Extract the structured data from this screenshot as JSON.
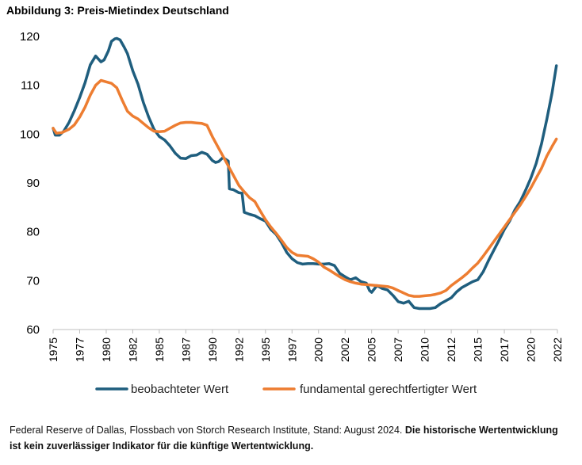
{
  "title": "Abbildung 3: Preis-Mietindex Deutschland",
  "source_text": "Federal Reserve of Dallas, Flossbach von Storch Research Institute, Stand: August 2024.",
  "disclaimer": "Die historische Wertentwicklung ist kein zuverlässiger Indikator für die künftige Wertentwicklung.",
  "chart_data": {
    "type": "line",
    "title": "Abbildung 3: Preis-Mietindex Deutschland",
    "xlabel": "",
    "ylabel": "",
    "xlim": [
      1975,
      2022.5
    ],
    "ylim": [
      60,
      120
    ],
    "yticks": [
      60,
      70,
      80,
      90,
      100,
      110,
      120
    ],
    "xticks": [
      "1975",
      "1977",
      "1980",
      "1982",
      "1985",
      "1987",
      "1990",
      "1992",
      "1995",
      "1997",
      "2000",
      "2002",
      "2005",
      "2007",
      "2010",
      "2012",
      "2015",
      "2017",
      "2020",
      "2022"
    ],
    "grid": false,
    "legend_position": "bottom",
    "series": [
      {
        "name": "beobachteter Wert",
        "color": "#1F5E7E",
        "x": [
          1975,
          1975.2,
          1975.6,
          1976,
          1976.5,
          1977,
          1977.5,
          1978,
          1978.5,
          1979,
          1979.5,
          1979.8,
          1980.2,
          1980.5,
          1980.8,
          1981,
          1981.3,
          1981.7,
          1982,
          1982.5,
          1983,
          1983.5,
          1984,
          1984.5,
          1985,
          1985.5,
          1986,
          1986.5,
          1987,
          1987.5,
          1988,
          1988.5,
          1989,
          1989.5,
          1990,
          1990.3,
          1990.6,
          1991,
          1991.5,
          1991.6,
          1992,
          1992.5,
          1992.8,
          1993,
          1993.5,
          1994,
          1994.5,
          1995,
          1995.5,
          1996,
          1996.5,
          1997,
          1997.5,
          1998,
          1998.5,
          1999,
          1999.5,
          2000,
          2000.5,
          2001,
          2001.5,
          2002,
          2002.5,
          2003,
          2003.5,
          2004,
          2004.5,
          2004.8,
          2005,
          2005.5,
          2006,
          2006.5,
          2007,
          2007.5,
          2008,
          2008.5,
          2009,
          2009.5,
          2010,
          2010.5,
          2011,
          2011.5,
          2012,
          2012.5,
          2013,
          2013.5,
          2014,
          2014.5,
          2015,
          2015.5,
          2016,
          2016.5,
          2017,
          2017.5,
          2018,
          2018.5,
          2019,
          2019.5,
          2020,
          2020.5,
          2021,
          2021.5,
          2022,
          2022.4
        ],
        "values": [
          101.2,
          99.8,
          99.8,
          100.6,
          102.4,
          104.8,
          107.5,
          110.5,
          114.2,
          116.0,
          114.8,
          115.2,
          117.0,
          119.0,
          119.5,
          119.6,
          119.3,
          117.8,
          116.5,
          113.0,
          110.2,
          106.5,
          103.5,
          101.0,
          99.5,
          98.8,
          97.6,
          96.1,
          95.1,
          95.0,
          95.6,
          95.7,
          96.3,
          95.9,
          94.6,
          94.2,
          94.4,
          95.2,
          94.5,
          88.8,
          88.6,
          88.0,
          87.9,
          84.0,
          83.6,
          83.3,
          82.7,
          82.2,
          80.5,
          79.5,
          77.8,
          75.8,
          74.5,
          73.7,
          73.4,
          73.5,
          73.5,
          73.4,
          73.4,
          73.5,
          73.1,
          71.5,
          70.8,
          70.2,
          70.6,
          69.8,
          69.5,
          68.0,
          67.6,
          69.0,
          68.4,
          68.1,
          67.0,
          65.7,
          65.4,
          65.8,
          64.5,
          64.3,
          64.3,
          64.3,
          64.5,
          65.3,
          65.9,
          66.5,
          67.7,
          68.6,
          69.2,
          69.8,
          70.2,
          71.8,
          74.1,
          76.2,
          78.3,
          80.5,
          82.2,
          84.5,
          86.2,
          88.5,
          91.0,
          94.0,
          98.0,
          103.0,
          108.5,
          114.0
        ]
      },
      {
        "name": "fundamental gerechtfertigter Wert",
        "color": "#ED7D31",
        "x": [
          1975,
          1975.3,
          1975.8,
          1976.5,
          1977,
          1977.5,
          1978,
          1978.5,
          1979,
          1979.5,
          1980,
          1980.5,
          1981,
          1981.5,
          1982,
          1982.5,
          1983,
          1983.5,
          1984,
          1984.5,
          1985,
          1985.5,
          1986,
          1986.5,
          1987,
          1987.5,
          1988,
          1988.5,
          1989,
          1989.5,
          1990,
          1990.5,
          1991,
          1991.5,
          1992,
          1992.5,
          1993,
          1993.5,
          1994,
          1994.5,
          1995,
          1995.5,
          1996,
          1996.5,
          1997,
          1997.5,
          1998,
          1998.5,
          1999,
          1999.5,
          2000,
          2000.5,
          2001,
          2001.5,
          2002,
          2002.5,
          2003,
          2003.5,
          2004,
          2004.5,
          2005,
          2005.5,
          2006,
          2006.5,
          2007,
          2007.5,
          2008,
          2008.5,
          2009,
          2009.5,
          2010,
          2010.5,
          2011,
          2011.5,
          2012,
          2012.5,
          2013,
          2013.5,
          2014,
          2014.5,
          2015,
          2015.5,
          2016,
          2016.5,
          2017,
          2017.5,
          2018,
          2018.5,
          2019,
          2019.5,
          2020,
          2020.5,
          2021,
          2021.5,
          2022,
          2022.4
        ],
        "values": [
          101.2,
          100.2,
          100.3,
          101.0,
          101.9,
          103.5,
          105.5,
          108.0,
          110.0,
          111.0,
          110.7,
          110.4,
          109.5,
          107.0,
          104.7,
          103.7,
          103.1,
          102.2,
          101.3,
          100.6,
          100.5,
          100.6,
          101.2,
          101.8,
          102.3,
          102.4,
          102.4,
          102.3,
          102.2,
          101.8,
          99.5,
          97.5,
          95.5,
          93.5,
          91.5,
          89.5,
          88.2,
          87.0,
          86.2,
          84.3,
          82.5,
          81.0,
          79.7,
          78.3,
          76.8,
          75.8,
          75.2,
          75.1,
          75.0,
          74.5,
          73.8,
          72.8,
          72.2,
          71.5,
          70.8,
          70.2,
          69.8,
          69.5,
          69.3,
          69.2,
          69.1,
          69.0,
          68.9,
          68.8,
          68.5,
          68.0,
          67.5,
          67.0,
          66.8,
          66.8,
          66.9,
          67.0,
          67.2,
          67.5,
          68.0,
          69.0,
          69.8,
          70.6,
          71.5,
          72.6,
          73.6,
          75.0,
          76.5,
          78.0,
          79.5,
          81.0,
          82.5,
          84.0,
          85.5,
          87.2,
          89.0,
          91.0,
          93.0,
          95.5,
          97.5,
          99.0
        ]
      }
    ]
  }
}
